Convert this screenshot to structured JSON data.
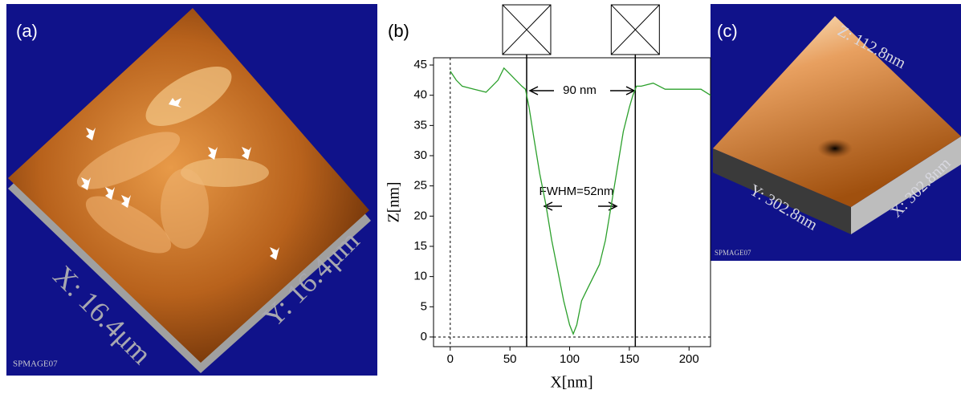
{
  "panels": {
    "a": {
      "label": "(a)",
      "x_size": "X: 16.4μm",
      "y_size": "Y: 16.4μm",
      "instrument": "SPMAGE07"
    },
    "c": {
      "label": "(c)",
      "z_size": "Z: 112.8nm",
      "y_size": "Y: 302.8nm",
      "x_size": "X: 302.8nm",
      "instrument": "SPMAGE07"
    }
  },
  "chart_data": {
    "type": "line",
    "panel_label": "(b)",
    "x_label": "X[nm]",
    "y_label": "Z[nm]",
    "x": [
      0,
      5,
      10,
      20,
      30,
      35,
      40,
      45,
      50,
      55,
      60,
      63,
      66,
      70,
      75,
      80,
      85,
      90,
      95,
      100,
      103,
      106,
      110,
      115,
      120,
      125,
      130,
      135,
      140,
      145,
      150,
      153,
      156,
      160,
      170,
      180,
      190,
      200,
      210,
      218
    ],
    "values": [
      44,
      42.5,
      41.5,
      41,
      40.5,
      41.5,
      42.5,
      44.5,
      43.5,
      42.5,
      41.5,
      41,
      38,
      33,
      27,
      22,
      16,
      11,
      6,
      2,
      0.5,
      2,
      6,
      8,
      10,
      12,
      16,
      22,
      28,
      34,
      38,
      40,
      41.5,
      41.5,
      42,
      41,
      41,
      41,
      41,
      40
    ],
    "color": "#2ca02c",
    "cursors": [
      64,
      155
    ],
    "annotations": [
      "90 nm",
      "FWHM=52nm"
    ],
    "xlim": [
      -14,
      218
    ],
    "ylim": [
      -1.6,
      46.2
    ],
    "xticks": [
      0,
      50,
      100,
      150,
      200
    ],
    "yticks": [
      0,
      5,
      10,
      15,
      20,
      25,
      30,
      35,
      40,
      45
    ]
  }
}
